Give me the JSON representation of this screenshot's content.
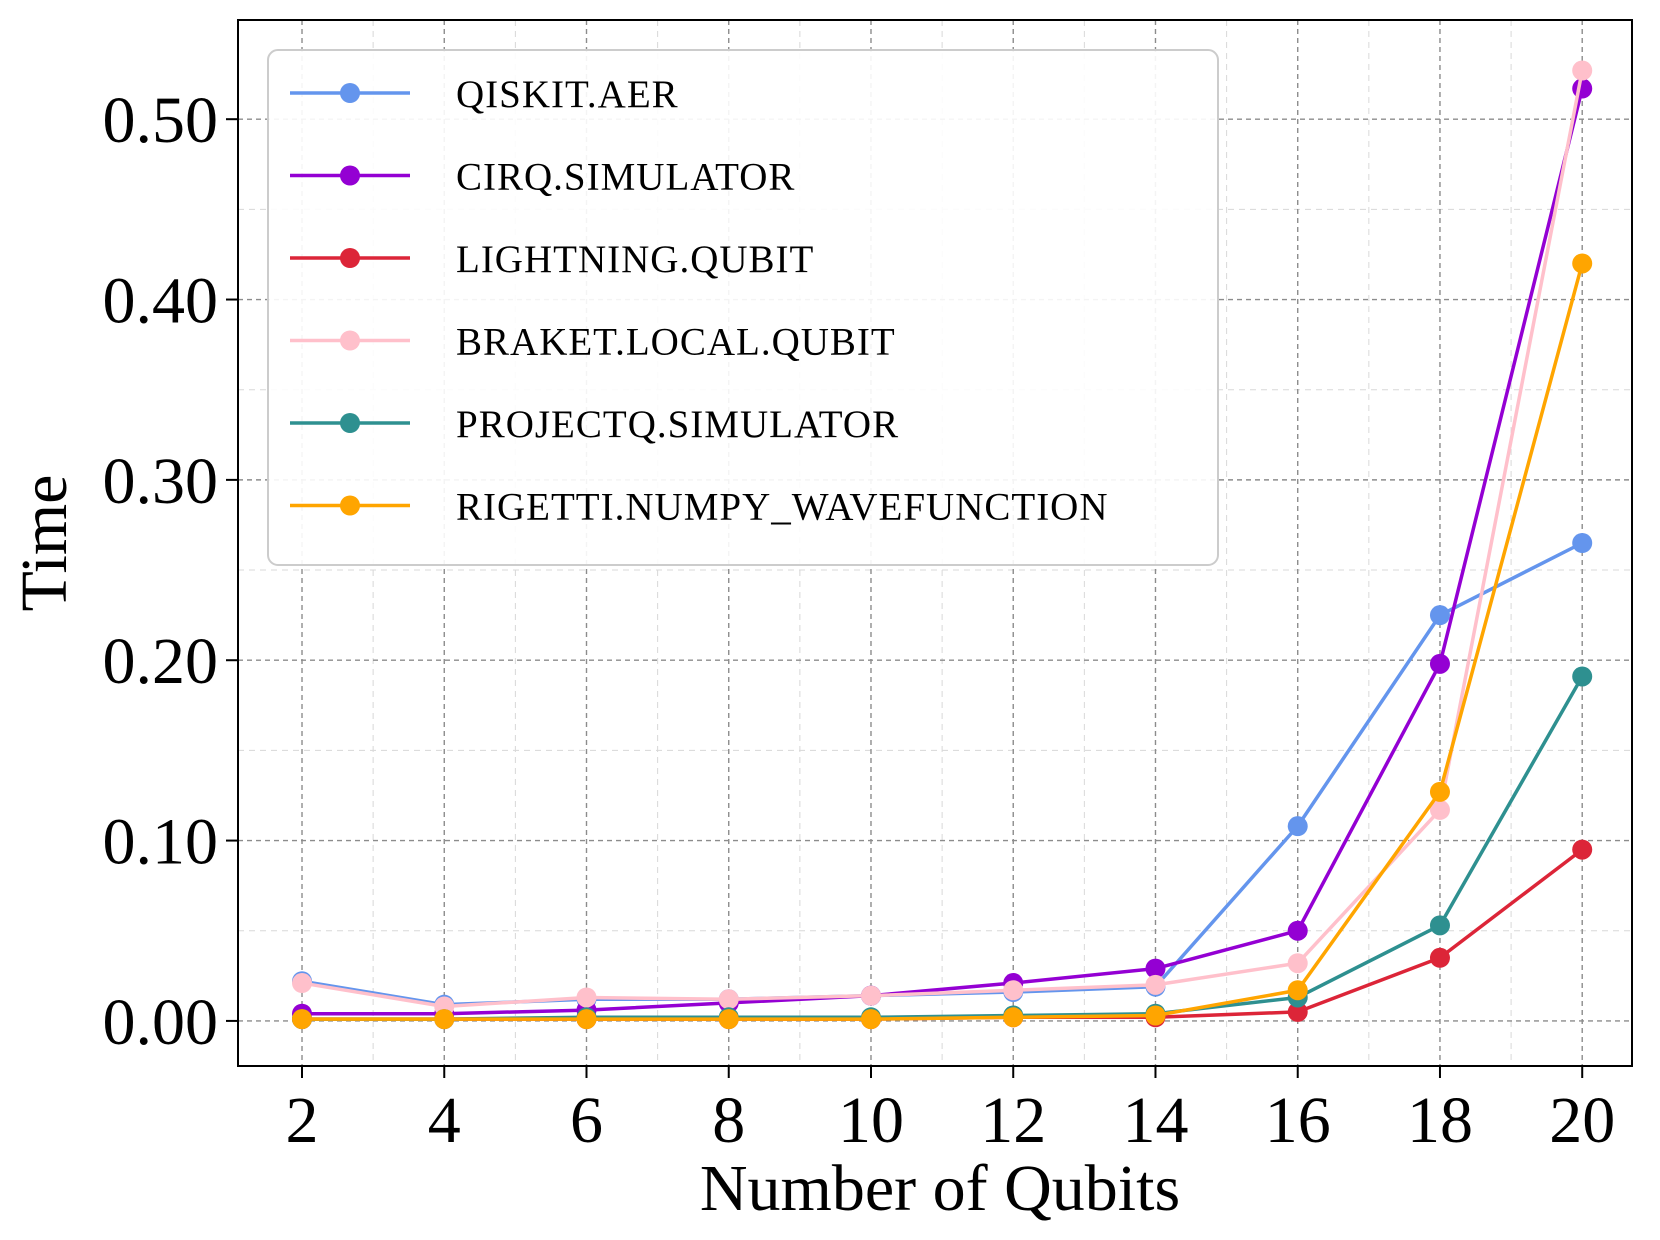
{
  "chart_data": {
    "type": "line",
    "xlabel": "Number of Qubits",
    "ylabel": "Time",
    "x": [
      2,
      4,
      6,
      8,
      10,
      12,
      14,
      16,
      18,
      20
    ],
    "xticks": [
      "2",
      "4",
      "6",
      "8",
      "10",
      "12",
      "14",
      "16",
      "18",
      "20"
    ],
    "yticks": [
      "0.00",
      "0.10",
      "0.20",
      "0.30",
      "0.40",
      "0.50"
    ],
    "xlim": [
      1.1,
      20.7
    ],
    "ylim": [
      -0.025,
      0.555
    ],
    "grid": true,
    "legend_position": "upper-left",
    "series": [
      {
        "name": "QISKIT.AER",
        "color": "#6495ED",
        "values": [
          0.022,
          0.009,
          0.012,
          0.012,
          0.014,
          0.016,
          0.019,
          0.108,
          0.225,
          0.265
        ]
      },
      {
        "name": "CIRQ.SIMULATOR",
        "color": "#9400D3",
        "values": [
          0.004,
          0.004,
          0.006,
          0.01,
          0.014,
          0.021,
          0.029,
          0.05,
          0.198,
          0.517
        ]
      },
      {
        "name": "LIGHTNING.QUBIT",
        "color": "#DC2538",
        "values": [
          0.001,
          0.001,
          0.001,
          0.001,
          0.001,
          0.002,
          0.002,
          0.005,
          0.035,
          0.095
        ]
      },
      {
        "name": "BRAKET.LOCAL.QUBIT",
        "color": "#FFC0CB",
        "values": [
          0.021,
          0.008,
          0.013,
          0.012,
          0.014,
          0.017,
          0.02,
          0.032,
          0.117,
          0.527
        ]
      },
      {
        "name": "PROJECTQ.SIMULATOR",
        "color": "#2E9090",
        "values": [
          0.001,
          0.001,
          0.002,
          0.002,
          0.002,
          0.003,
          0.004,
          0.013,
          0.053,
          0.191
        ]
      },
      {
        "name": "RIGETTI.NUMPY_WAVEFUNCTION",
        "color": "#FFA500",
        "values": [
          0.001,
          0.001,
          0.001,
          0.001,
          0.001,
          0.002,
          0.003,
          0.017,
          0.127,
          0.42
        ]
      }
    ]
  }
}
